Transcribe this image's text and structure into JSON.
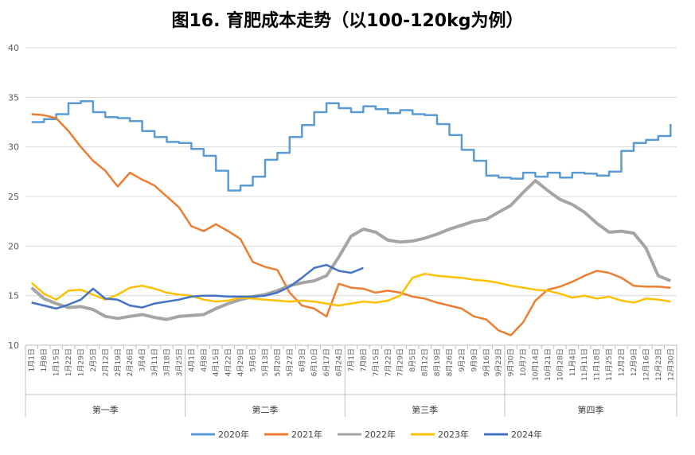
{
  "chart_data": {
    "type": "line",
    "title": "图16. 育肥成本走势（以100-120kg为例）",
    "xlabel": "",
    "ylabel": "",
    "ylim": [
      10,
      40
    ],
    "yticks": [
      10,
      15,
      20,
      25,
      30,
      35,
      40
    ],
    "grid": true,
    "legend_position": "bottom",
    "x_tick_labels": [
      "1月1日",
      "1月8日",
      "1月15日",
      "1月22日",
      "1月29日",
      "2月5日",
      "2月12日",
      "2月19日",
      "2月26日",
      "3月4日",
      "3月11日",
      "3月18日",
      "3月25日",
      "4月1日",
      "4月8日",
      "4月15日",
      "4月22日",
      "4月29日",
      "5月6日",
      "5月13日",
      "5月20日",
      "5月27日",
      "6月3日",
      "6月10日",
      "6月17日",
      "6月24日",
      "7月1日",
      "7月8日",
      "7月15日",
      "7月22日",
      "7月29日",
      "8月5日",
      "8月12日",
      "8月19日",
      "8月26日",
      "9月2日",
      "9月9日",
      "9月16日",
      "9月23日",
      "9月30日",
      "10月7日",
      "10月14日",
      "10月21日",
      "10月28日",
      "11月4日",
      "11月11日",
      "11月18日",
      "11月25日",
      "12月2日",
      "12月9日",
      "12月16日",
      "12月23日",
      "12月30日"
    ],
    "quarters": [
      {
        "label": "第一季",
        "start": 0,
        "end": 13
      },
      {
        "label": "第二季",
        "start": 13,
        "end": 26
      },
      {
        "label": "第三季",
        "start": 26,
        "end": 39
      },
      {
        "label": "第四季",
        "start": 39,
        "end": 53
      }
    ],
    "series": [
      {
        "name": "2020年",
        "color": "#5B9BD5",
        "step": true,
        "values": [
          32.5,
          32.8,
          33.3,
          34.4,
          34.6,
          33.5,
          33.0,
          32.9,
          32.6,
          31.6,
          31.0,
          30.5,
          30.4,
          29.8,
          29.1,
          27.6,
          25.6,
          26.1,
          27.0,
          28.7,
          29.4,
          31.0,
          32.2,
          33.5,
          34.4,
          33.9,
          33.5,
          34.1,
          33.8,
          33.4,
          33.7,
          33.3,
          33.2,
          32.3,
          31.2,
          29.7,
          28.6,
          27.1,
          26.9,
          26.8,
          27.4,
          27.0,
          27.4,
          26.9,
          27.4,
          27.3,
          27.1,
          27.5,
          29.6,
          30.4,
          30.7,
          31.1,
          32.3
        ]
      },
      {
        "name": "2021年",
        "color": "#ED7D31",
        "step": false,
        "values": [
          33.3,
          33.2,
          32.9,
          31.6,
          30.0,
          28.6,
          27.6,
          26.0,
          27.4,
          26.7,
          26.1,
          25.0,
          23.9,
          22.0,
          21.5,
          22.2,
          21.5,
          20.7,
          18.4,
          17.9,
          17.6,
          15.3,
          14.0,
          13.7,
          12.9,
          16.2,
          15.8,
          15.7,
          15.3,
          15.5,
          15.3,
          14.9,
          14.7,
          14.3,
          14.0,
          13.7,
          12.9,
          12.6,
          11.5,
          11.0,
          12.3,
          14.5,
          15.6,
          15.9,
          16.4,
          17.0,
          17.5,
          17.3,
          16.8,
          16.0,
          15.9,
          15.9,
          15.8
        ]
      },
      {
        "name": "2022年",
        "color": "#A5A5A5",
        "step": false,
        "values": [
          15.8,
          14.7,
          14.2,
          13.8,
          13.9,
          13.6,
          12.9,
          12.7,
          12.9,
          13.1,
          12.8,
          12.6,
          12.9,
          13.0,
          13.1,
          13.7,
          14.2,
          14.6,
          14.9,
          15.1,
          15.5,
          16.0,
          16.3,
          16.5,
          17.0,
          18.9,
          21.0,
          21.7,
          21.4,
          20.6,
          20.4,
          20.5,
          20.8,
          21.2,
          21.7,
          22.1,
          22.5,
          22.7,
          23.4,
          24.1,
          25.4,
          26.6,
          25.6,
          24.7,
          24.2,
          23.4,
          22.3,
          21.4,
          21.5,
          21.3,
          19.8,
          17.0,
          16.5
        ]
      },
      {
        "name": "2023年",
        "color": "#FFC000",
        "step": false,
        "values": [
          16.3,
          15.2,
          14.6,
          15.5,
          15.6,
          15.1,
          14.6,
          15.1,
          15.8,
          16.0,
          15.7,
          15.3,
          15.1,
          15.0,
          14.6,
          14.4,
          14.5,
          14.8,
          14.7,
          14.6,
          14.5,
          14.4,
          14.5,
          14.4,
          14.2,
          14.0,
          14.2,
          14.4,
          14.3,
          14.5,
          15.0,
          16.8,
          17.2,
          17.0,
          16.9,
          16.8,
          16.6,
          16.5,
          16.3,
          16.0,
          15.8,
          15.6,
          15.5,
          15.2,
          14.8,
          15.0,
          14.7,
          14.9,
          14.5,
          14.3,
          14.7,
          14.6,
          14.4
        ]
      },
      {
        "name": "2024年",
        "color": "#4472C4",
        "step": false,
        "values": [
          14.3,
          14.0,
          13.7,
          14.1,
          14.6,
          15.7,
          14.7,
          14.6,
          14.0,
          13.8,
          14.2,
          14.4,
          14.6,
          14.9,
          15.0,
          15.0,
          14.9,
          14.9,
          14.9,
          15.0,
          15.3,
          15.9,
          16.8,
          17.8,
          18.1,
          17.5,
          17.3,
          17.8
        ]
      }
    ]
  }
}
